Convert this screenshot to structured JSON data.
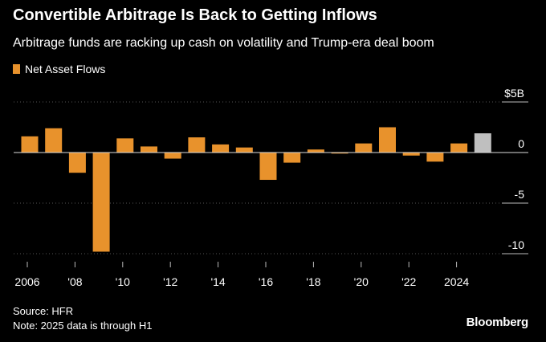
{
  "header": {
    "title": "Convertible Arbitrage Is Back to Getting Inflows",
    "subtitle": "Arbitrage funds are racking up cash on volatility and Trump-era deal boom"
  },
  "legend": {
    "label": "Net Asset Flows",
    "color": "#e8922c"
  },
  "footer": {
    "source": "Source: HFR",
    "note": "Note: 2025 data is through H1",
    "brand": "Bloomberg"
  },
  "chart_data": {
    "type": "bar",
    "x": [
      2006,
      2007,
      2008,
      2009,
      2010,
      2011,
      2012,
      2013,
      2014,
      2015,
      2016,
      2017,
      2018,
      2019,
      2020,
      2021,
      2022,
      2023,
      2024,
      2025
    ],
    "series": [
      {
        "name": "Net Asset Flows",
        "values": [
          1.6,
          2.4,
          -2.0,
          -9.8,
          1.4,
          0.6,
          -0.6,
          1.5,
          0.8,
          0.5,
          -2.7,
          -1.0,
          0.3,
          -0.1,
          0.9,
          2.5,
          -0.3,
          -0.9,
          0.9,
          1.9
        ],
        "color": "#e8922c",
        "highlight_index": 19,
        "highlight_color": "#bfbfbf"
      }
    ],
    "ylim": [
      -10.5,
      5
    ],
    "yticks": [
      5,
      0,
      -5,
      -10
    ],
    "ytick_labels": [
      "$5B",
      "0",
      "-5",
      "-10"
    ],
    "xticks": [
      2006,
      2008,
      2010,
      2012,
      2014,
      2016,
      2018,
      2020,
      2022,
      2024
    ],
    "xtick_labels": [
      "2006",
      "'08",
      "'10",
      "'12",
      "'14",
      "'16",
      "'18",
      "'20",
      "'22",
      "2024"
    ],
    "grid": true,
    "legend_position": "top-left",
    "title": "Convertible Arbitrage Is Back to Getting Inflows",
    "xlabel": "",
    "ylabel": ""
  }
}
